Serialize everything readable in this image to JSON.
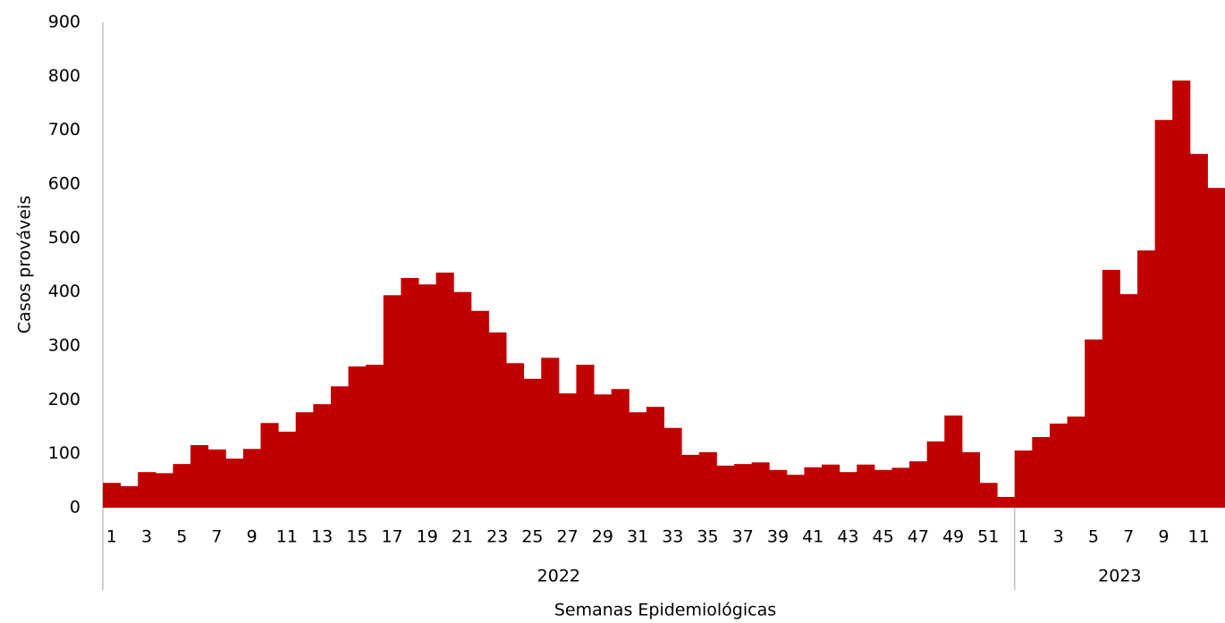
{
  "chart_data": {
    "type": "bar",
    "y_label": "Casos prováveis",
    "x_label": "Semanas Epidemiológicas",
    "color": "#c00000",
    "ylim": [
      0,
      900
    ],
    "yticks": [
      0,
      100,
      200,
      300,
      400,
      500,
      600,
      700,
      800,
      900
    ],
    "grid": false,
    "groups": [
      {
        "name": "2022",
        "categories": [
          "1",
          null,
          "3",
          null,
          "5",
          null,
          "7",
          null,
          "9",
          null,
          "11",
          null,
          "13",
          null,
          "15",
          null,
          "17",
          null,
          "19",
          null,
          "21",
          null,
          "23",
          null,
          "25",
          null,
          "27",
          null,
          "29",
          null,
          "31",
          null,
          "33",
          null,
          "35",
          null,
          "37",
          null,
          "39",
          null,
          "41",
          null,
          "43",
          null,
          "45",
          null,
          "47",
          null,
          "49",
          null,
          "51",
          null
        ],
        "values": [
          46,
          40,
          66,
          64,
          81,
          116,
          108,
          91,
          109,
          157,
          141,
          177,
          192,
          225,
          262,
          265,
          394,
          426,
          414,
          436,
          400,
          365,
          325,
          268,
          239,
          278,
          212,
          265,
          210,
          220,
          177,
          187,
          148,
          98,
          103,
          78,
          81,
          84,
          70,
          61,
          75,
          80,
          66,
          80,
          70,
          74,
          86,
          123,
          171,
          103,
          46,
          20
        ]
      },
      {
        "name": "2023",
        "categories": [
          "1",
          null,
          "3",
          null,
          "5",
          null,
          "7",
          null,
          "9",
          null,
          "11",
          null
        ],
        "values": [
          106,
          131,
          156,
          169,
          312,
          441,
          396,
          477,
          719,
          792,
          656,
          593
        ]
      }
    ]
  }
}
